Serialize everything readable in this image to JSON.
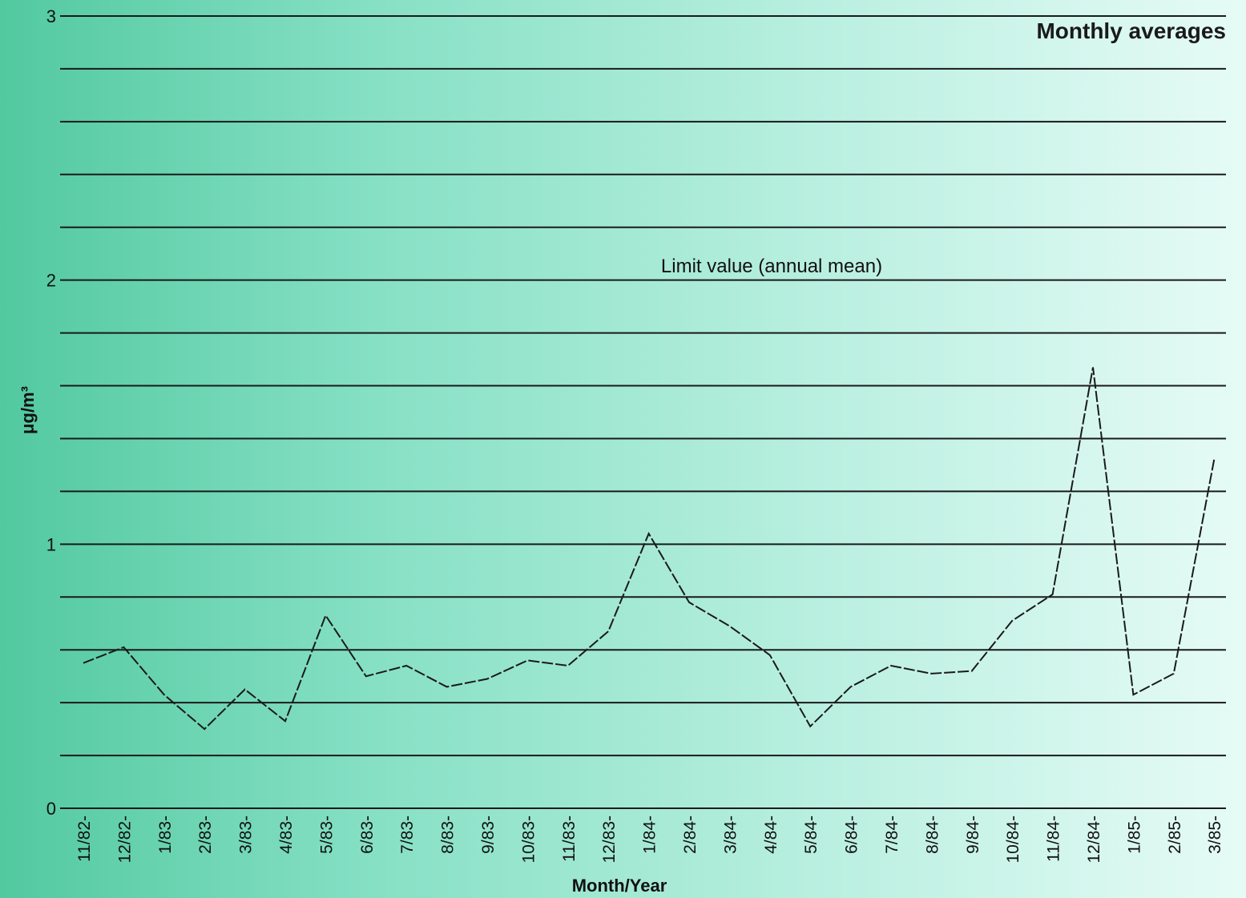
{
  "chart_data": {
    "type": "line",
    "title": "Monthly averages",
    "xlabel": "Month/Year",
    "ylabel": "μg/m³",
    "ylim": [
      0,
      3
    ],
    "yticks": [
      0,
      1,
      2,
      3
    ],
    "grid": true,
    "categories": [
      "11/82-",
      "12/82-",
      "1/83-",
      "2/83-",
      "3/83-",
      "4/83-",
      "5/83-",
      "6/83-",
      "7/83-",
      "8/83-",
      "9/83-",
      "10/83-",
      "11/83-",
      "12/83-",
      "1/84-",
      "2/84-",
      "3/84-",
      "4/84-",
      "5/84-",
      "6/84-",
      "7/84-",
      "8/84-",
      "9/84-",
      "10/84-",
      "11/84-",
      "12/84-",
      "1/85-",
      "2/85-",
      "3/85-"
    ],
    "series": [
      {
        "values": [
          0.55,
          0.61,
          0.43,
          0.3,
          0.45,
          0.33,
          0.73,
          0.5,
          0.54,
          0.46,
          0.49,
          0.56,
          0.54,
          0.67,
          1.04,
          0.78,
          0.69,
          0.58,
          0.31,
          0.46,
          0.54,
          0.51,
          0.52,
          0.71,
          0.81,
          1.67,
          0.43,
          0.51,
          1.32
        ]
      }
    ],
    "annotations": [
      {
        "text": "Limit value (annual mean)",
        "y": 2
      }
    ]
  }
}
